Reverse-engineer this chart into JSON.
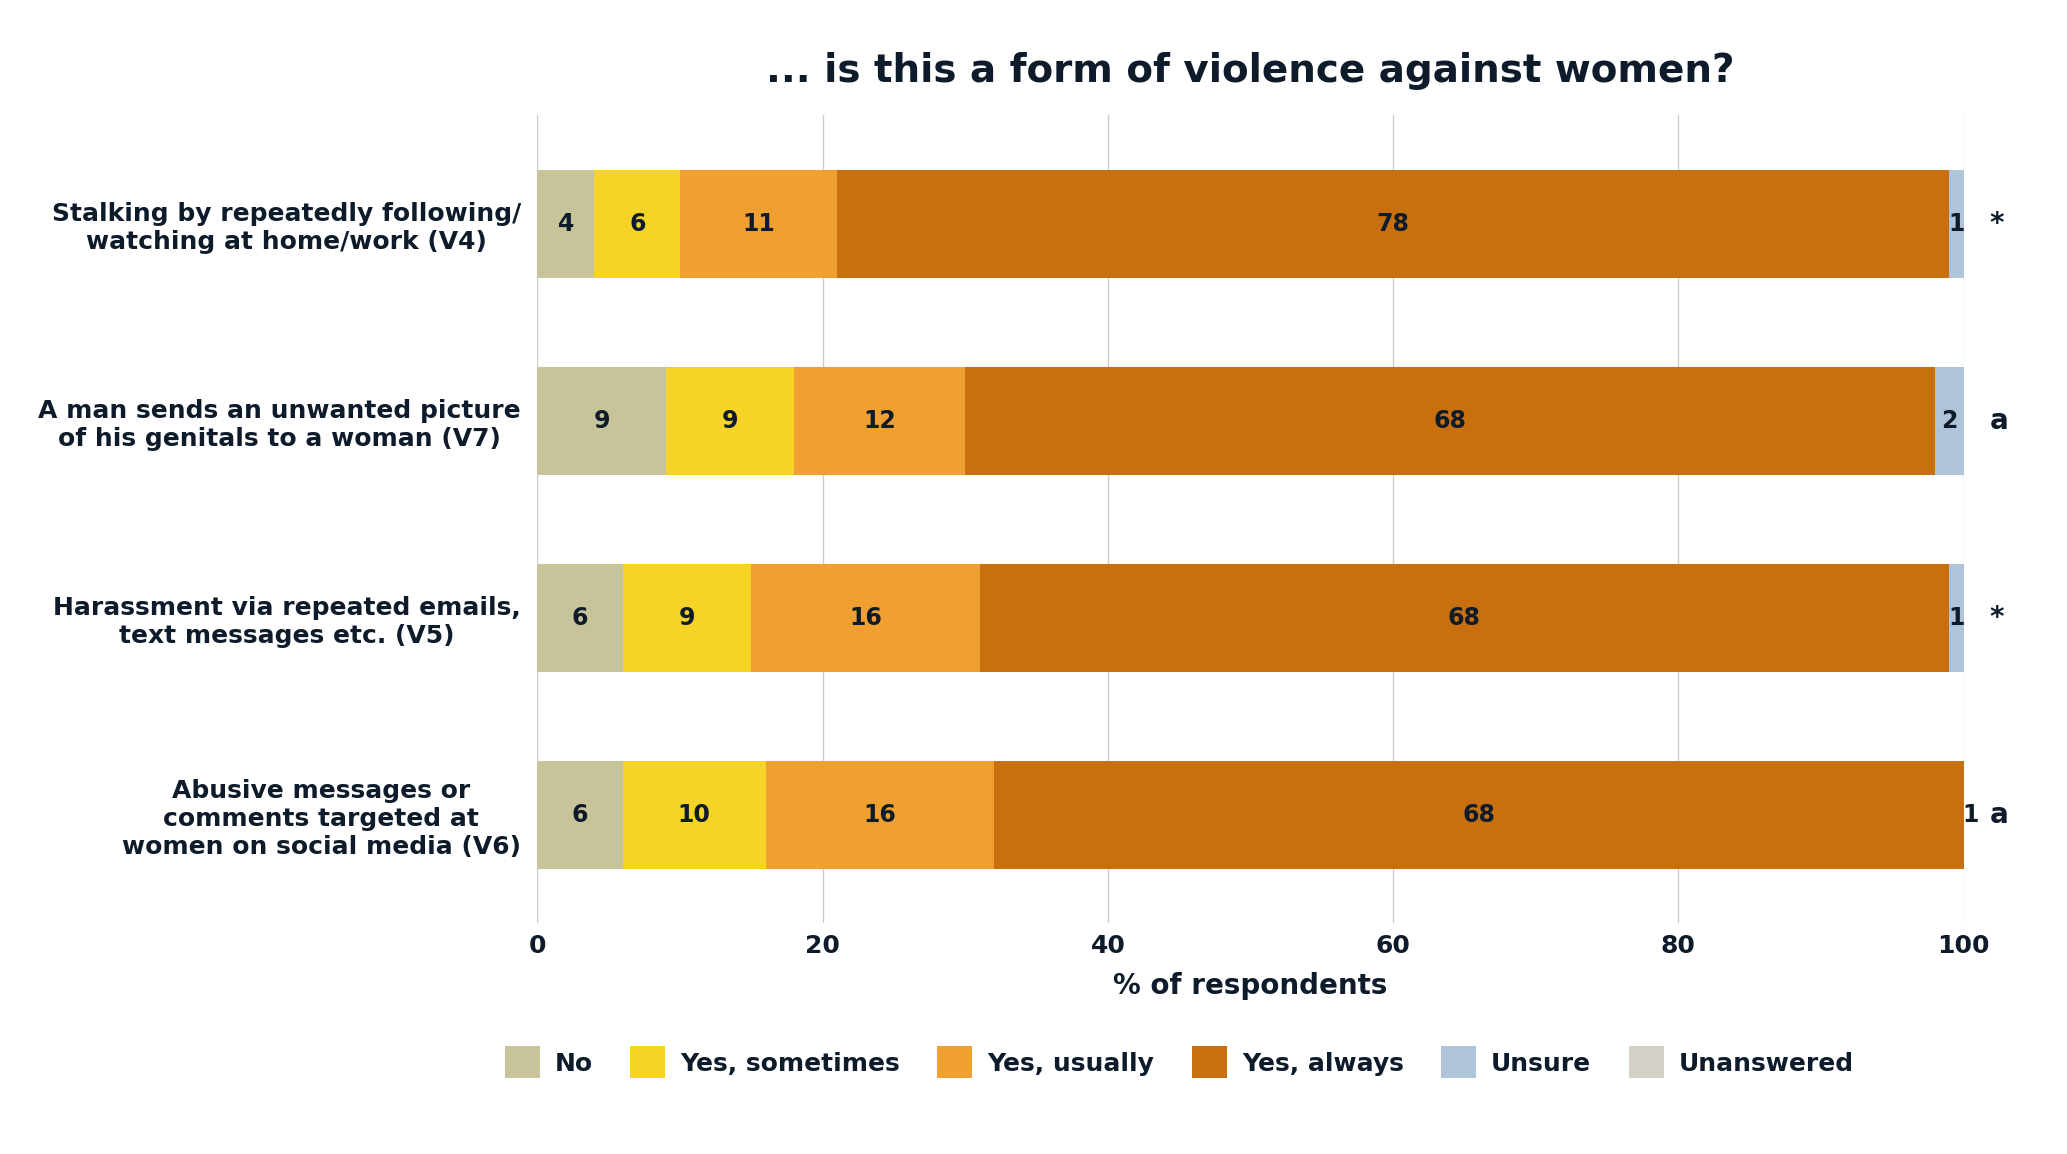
{
  "title": "... is this a form of violence against women?",
  "xlabel": "% of respondents",
  "categories": [
    "Stalking by repeatedly following/\nwatching at home/work (V4)",
    "A man sends an unwanted picture\nof his genitals to a woman (V7)",
    "Harassment via repeated emails,\ntext messages etc. (V5)",
    "Abusive messages or\ncomments targeted at\nwomen on social media (V6)"
  ],
  "segments": [
    "No",
    "Yes, sometimes",
    "Yes, usually",
    "Yes, always",
    "Unsure",
    "Unanswered"
  ],
  "colors": [
    "#c8c49a",
    "#f5d327",
    "#f0a030",
    "#c87010",
    "#afc4d8",
    "#d4d0c8"
  ],
  "data": [
    [
      4,
      6,
      11,
      78,
      1,
      0
    ],
    [
      9,
      9,
      12,
      68,
      2,
      0
    ],
    [
      6,
      9,
      16,
      68,
      1,
      0
    ],
    [
      6,
      10,
      16,
      68,
      1,
      0
    ]
  ],
  "annotations_right": [
    "*",
    "a",
    "*",
    "a"
  ],
  "xlim": [
    0,
    100
  ],
  "xticks": [
    0,
    20,
    40,
    60,
    80,
    100
  ],
  "bar_height": 0.55,
  "background_color": "#ffffff",
  "title_color": "#0d1b2a",
  "label_color": "#0d1b2a",
  "grid_color": "#cccccc",
  "title_fontsize": 28,
  "axis_label_fontsize": 20,
  "tick_fontsize": 18,
  "bar_label_fontsize": 17,
  "legend_fontsize": 18,
  "ylabel_fontsize": 18,
  "ann_fontsize": 20
}
